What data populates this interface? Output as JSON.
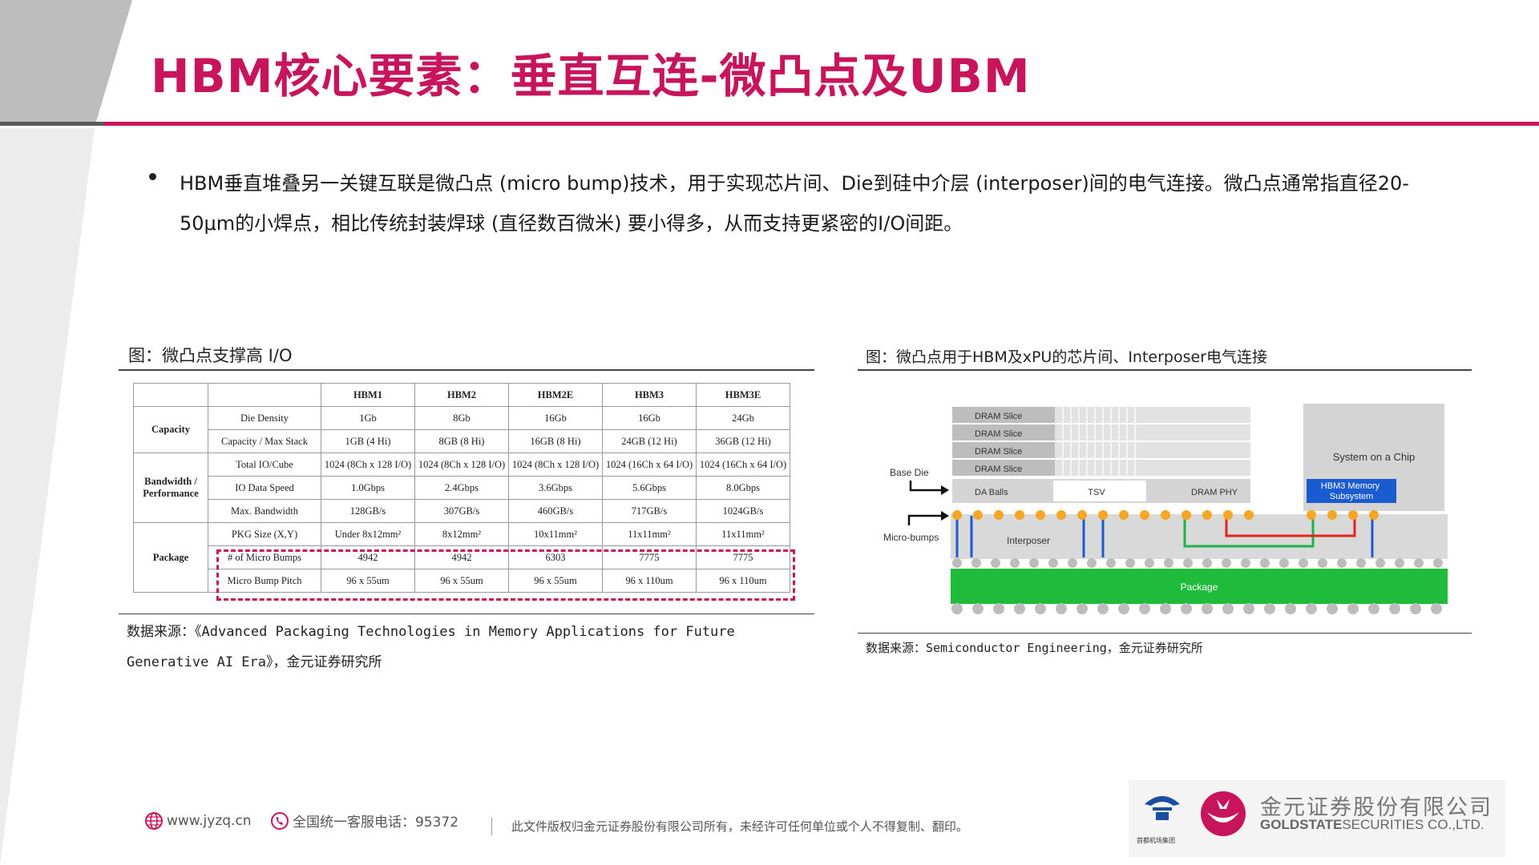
{
  "header": {
    "title": "HBM核心要素：垂直互连-微凸点及UBM"
  },
  "bullet": {
    "text": "HBM垂直堆叠另一关键互联是微凸点 (micro bump)技术，用于实现芯片间、Die到硅中介层 (interposer)间的电气连接。微凸点通常指直径20-50μm的小焊点，相比传统封装焊球 (直径数百微米) 要小得多，从而支持更紧密的I/O间距。"
  },
  "figure_left": {
    "caption": "图：微凸点支撑高 I/O",
    "source": "数据来源：《Advanced Packaging Technologies in Memory Applications for Future Generative AI Era》，金元证券研究所",
    "table": {
      "columns": [
        "HBM1",
        "HBM2",
        "HBM2E",
        "HBM3",
        "HBM3E"
      ],
      "groups": {
        "capacity": "Capacity",
        "bandwidth": "Bandwidth / Performance",
        "package": "Package"
      },
      "rows": [
        {
          "metric": "Die Density",
          "values": [
            "1Gb",
            "8Gb",
            "16Gb",
            "16Gb",
            "24Gb"
          ]
        },
        {
          "metric": "Capacity / Max Stack",
          "values": [
            "1GB (4 Hi)",
            "8GB (8 Hi)",
            "16GB (8 Hi)",
            "24GB (12 Hi)",
            "36GB (12 Hi)"
          ]
        },
        {
          "metric": "Total IO/Cube",
          "values": [
            "1024 (8Ch x 128 I/O)",
            "1024 (8Ch x 128 I/O)",
            "1024 (8Ch x 128 I/O)",
            "1024 (16Ch x 64 I/O)",
            "1024 (16Ch x 64 I/O)"
          ]
        },
        {
          "metric": "IO Data Speed",
          "values": [
            "1.0Gbps",
            "2.4Gbps",
            "3.6Gbps",
            "5.6Gbps",
            "8.0Gbps"
          ]
        },
        {
          "metric": "Max. Bandwidth",
          "values": [
            "128GB/s",
            "307GB/s",
            "460GB/s",
            "717GB/s",
            "1024GB/s"
          ]
        },
        {
          "metric": "PKG Size (X,Y)",
          "values": [
            "Under 8x12mm²",
            "8x12mm²",
            "10x11mm²",
            "11x11mm²",
            "11x11mm²"
          ]
        },
        {
          "metric": "# of Micro Bumps",
          "values": [
            "4942",
            "4942",
            "6303",
            "7775",
            "7775"
          ]
        },
        {
          "metric": "Micro Bump Pitch",
          "values": [
            "96 x 55um",
            "96 x 55um",
            "96 x 55um",
            "96 x 110um",
            "96 x 110um"
          ]
        }
      ]
    }
  },
  "figure_right": {
    "caption": "图：微凸点用于HBM及xPU的芯片间、Interposer电气连接",
    "source": "数据来源：Semiconductor Engineering，金元证券研究所",
    "diagram": {
      "dram_slices": [
        "DRAM Slice",
        "DRAM Slice",
        "DRAM Slice",
        "DRAM Slice"
      ],
      "base_die_label": "Base Die",
      "da_balls": "DA Balls",
      "tsv": "TSV",
      "dram_phy": "DRAM PHY",
      "soc": "System on a Chip",
      "hbm3_subsystem": "HBM3 Memory Subsystem",
      "micro_bumps": "Micro-bumps",
      "interposer": "Interposer",
      "package": "Package",
      "colors": {
        "bump": "#f5a623",
        "tsv_line": "#1a5ccf",
        "green_path": "#1bb24a",
        "red_path": "#e2231a",
        "package": "#1fbb3a",
        "hbm3": "#1a5ccf"
      }
    }
  },
  "footer": {
    "website": "www.jyzq.cn",
    "hotline": "全国统一客服电话：95372",
    "copyright": "此文件版权归金元证券股份有限公司所有，未经许可任何单位或个人不得复制、翻印。",
    "parent_group_cn": "首都机场集团",
    "company_cn": "金元证券股份有限公司",
    "company_en_bold": "GOLDSTATE",
    "company_en_rest": "SECURITIES CO.,LTD."
  },
  "colors": {
    "accent": "#c8145a",
    "deco_gray": "#bdbdbd"
  }
}
